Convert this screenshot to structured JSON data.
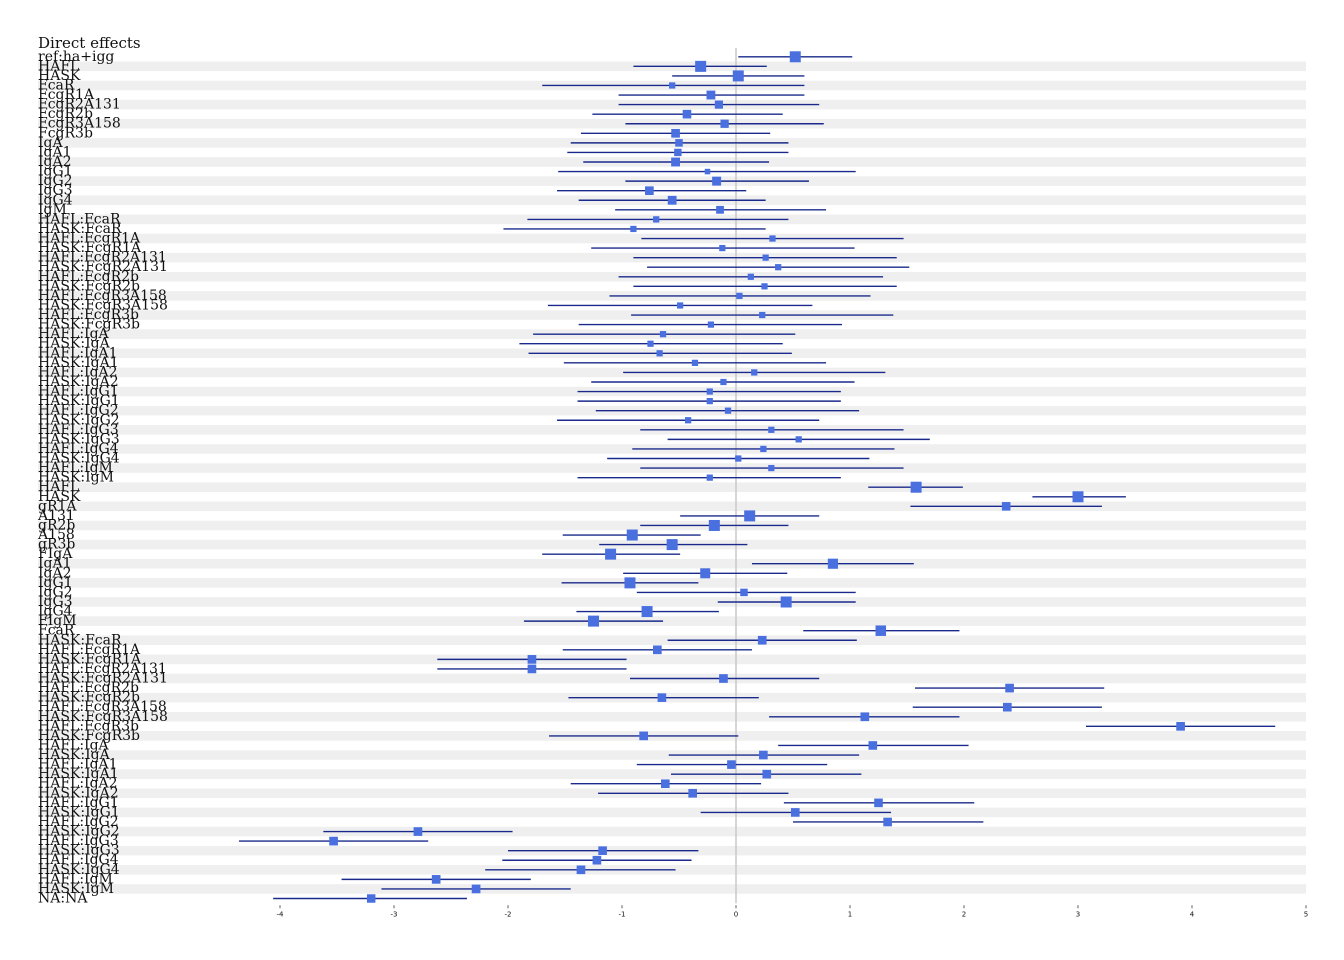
{
  "chart_data": {
    "type": "forest",
    "title": "Direct effects",
    "xlabel": "",
    "ylabel": "",
    "xlim": [
      -4,
      5
    ],
    "xticks": [
      -4,
      -3,
      -2,
      -1,
      0,
      1,
      2,
      3,
      4,
      5
    ],
    "reference_line": 0,
    "rows": [
      {
        "label": "ref:ha+igg",
        "est": 0.52,
        "lo": 0.02,
        "hi": 1.02
      },
      {
        "label": "HAFL",
        "est": -0.31,
        "lo": -0.9,
        "hi": 0.27
      },
      {
        "label": "HASK",
        "est": 0.02,
        "lo": -0.56,
        "hi": 0.6
      },
      {
        "label": "FcaR",
        "est": -0.56,
        "lo": -1.7,
        "hi": 0.6
      },
      {
        "label": "FcgR1A",
        "est": -0.22,
        "lo": -1.03,
        "hi": 0.6
      },
      {
        "label": "FcgR2A131",
        "est": -0.15,
        "lo": -1.03,
        "hi": 0.73
      },
      {
        "label": "FcgR2b",
        "est": -0.43,
        "lo": -1.26,
        "hi": 0.41
      },
      {
        "label": "FcgR3A158",
        "est": -0.1,
        "lo": -0.97,
        "hi": 0.77
      },
      {
        "label": "FcgR3b",
        "est": -0.53,
        "lo": -1.36,
        "hi": 0.3
      },
      {
        "label": "IgA",
        "est": -0.5,
        "lo": -1.45,
        "hi": 0.46
      },
      {
        "label": "IgA1",
        "est": -0.51,
        "lo": -1.48,
        "hi": 0.46
      },
      {
        "label": "IgA2",
        "est": -0.53,
        "lo": -1.34,
        "hi": 0.29
      },
      {
        "label": "IgG1",
        "est": -0.25,
        "lo": -1.56,
        "hi": 1.05
      },
      {
        "label": "IgG2",
        "est": -0.17,
        "lo": -0.97,
        "hi": 0.64
      },
      {
        "label": "IgG3",
        "est": -0.76,
        "lo": -1.57,
        "hi": 0.09
      },
      {
        "label": "IgG4",
        "est": -0.56,
        "lo": -1.38,
        "hi": 0.26
      },
      {
        "label": "IgM",
        "est": -0.14,
        "lo": -1.06,
        "hi": 0.79
      },
      {
        "label": "HAFL:FcaR",
        "est": -0.7,
        "lo": -1.83,
        "hi": 0.46
      },
      {
        "label": "HASK:FcaR",
        "est": -0.9,
        "lo": -2.04,
        "hi": 0.26
      },
      {
        "label": "HAFL:FcgR1A",
        "est": 0.32,
        "lo": -0.83,
        "hi": 1.47
      },
      {
        "label": "HASK:FcgR1A",
        "est": -0.12,
        "lo": -1.27,
        "hi": 1.04
      },
      {
        "label": "HAFL:FcgR2A131",
        "est": 0.26,
        "lo": -0.9,
        "hi": 1.41
      },
      {
        "label": "HASK:FcgR2A131",
        "est": 0.37,
        "lo": -0.78,
        "hi": 1.52
      },
      {
        "label": "HAFL:FcgR2b",
        "est": 0.13,
        "lo": -1.03,
        "hi": 1.29
      },
      {
        "label": "HASK:FcgR2b",
        "est": 0.25,
        "lo": -0.9,
        "hi": 1.41
      },
      {
        "label": "HAFL:FcgR3A158",
        "est": 0.03,
        "lo": -1.11,
        "hi": 1.18
      },
      {
        "label": "HASK:FcgR3A158",
        "est": -0.49,
        "lo": -1.65,
        "hi": 0.67
      },
      {
        "label": "HAFL:FcgR3b",
        "est": 0.23,
        "lo": -0.92,
        "hi": 1.38
      },
      {
        "label": "HASK:FcgR3b",
        "est": -0.22,
        "lo": -1.38,
        "hi": 0.93
      },
      {
        "label": "HAFL:IgA",
        "est": -0.64,
        "lo": -1.78,
        "hi": 0.52
      },
      {
        "label": "HASK:IgA",
        "est": -0.75,
        "lo": -1.9,
        "hi": 0.41
      },
      {
        "label": "HAFL:IgA1",
        "est": -0.67,
        "lo": -1.82,
        "hi": 0.49
      },
      {
        "label": "HASK:IgA1",
        "est": -0.36,
        "lo": -1.51,
        "hi": 0.79
      },
      {
        "label": "HAFL:IgA2",
        "est": 0.16,
        "lo": -0.99,
        "hi": 1.31
      },
      {
        "label": "HASK:IgA2",
        "est": -0.11,
        "lo": -1.27,
        "hi": 1.04
      },
      {
        "label": "HAFL:IgG1",
        "est": -0.23,
        "lo": -1.39,
        "hi": 0.92
      },
      {
        "label": "HASK:IgG1",
        "est": -0.23,
        "lo": -1.39,
        "hi": 0.92
      },
      {
        "label": "HAFL:IgG2",
        "est": -0.07,
        "lo": -1.23,
        "hi": 1.08
      },
      {
        "label": "HASK:IgG2",
        "est": -0.42,
        "lo": -1.57,
        "hi": 0.73
      },
      {
        "label": "HAFL:IgG3",
        "est": 0.31,
        "lo": -0.84,
        "hi": 1.47
      },
      {
        "label": "HASK:IgG3",
        "est": 0.55,
        "lo": -0.6,
        "hi": 1.7
      },
      {
        "label": "HAFL:IgG4",
        "est": 0.24,
        "lo": -0.91,
        "hi": 1.39
      },
      {
        "label": "HASK:IgG4",
        "est": 0.02,
        "lo": -1.13,
        "hi": 1.17
      },
      {
        "label": "HAFL:IgM",
        "est": 0.31,
        "lo": -0.84,
        "hi": 1.47
      },
      {
        "label": "HASK:IgM",
        "est": -0.23,
        "lo": -1.39,
        "hi": 0.92
      },
      {
        "label": "HAFL",
        "est": 1.58,
        "lo": 1.16,
        "hi": 1.99
      },
      {
        "label": "HASK",
        "est": 3.0,
        "lo": 2.6,
        "hi": 3.42
      },
      {
        "label": "gR1A",
        "est": 2.37,
        "lo": 1.53,
        "hi": 3.21
      },
      {
        "label": "A131",
        "est": 0.12,
        "lo": -0.49,
        "hi": 0.73
      },
      {
        "label": "gR2b",
        "est": -0.19,
        "lo": -0.84,
        "hi": 0.46
      },
      {
        "label": "A158",
        "est": -0.91,
        "lo": -1.52,
        "hi": -0.31
      },
      {
        "label": "gR3b",
        "est": -0.56,
        "lo": -1.2,
        "hi": 0.1
      },
      {
        "label": "FIgA",
        "est": -1.1,
        "lo": -1.7,
        "hi": -0.49
      },
      {
        "label": "IgA1",
        "est": 0.85,
        "lo": 0.14,
        "hi": 1.56
      },
      {
        "label": "IgA2",
        "est": -0.27,
        "lo": -0.99,
        "hi": 0.45
      },
      {
        "label": "IgG1",
        "est": -0.93,
        "lo": -1.53,
        "hi": -0.33
      },
      {
        "label": "IgG2",
        "est": 0.07,
        "lo": -0.87,
        "hi": 1.05
      },
      {
        "label": "IgG3",
        "est": 0.44,
        "lo": -0.16,
        "hi": 1.05
      },
      {
        "label": "IgG4",
        "est": -0.78,
        "lo": -1.4,
        "hi": -0.15
      },
      {
        "label": "FIgM",
        "est": -1.25,
        "lo": -1.86,
        "hi": -0.64
      },
      {
        "label": "FcaR",
        "est": 1.27,
        "lo": 0.59,
        "hi": 1.96
      },
      {
        "label": "HASK:FcaR",
        "est": 0.23,
        "lo": -0.6,
        "hi": 1.06
      },
      {
        "label": "HAFL:FcgR1A",
        "est": -0.69,
        "lo": -1.52,
        "hi": 0.14
      },
      {
        "label": "HASK:FcgR1A",
        "est": -1.79,
        "lo": -2.62,
        "hi": -0.96
      },
      {
        "label": "HAFL:FcgR2A131",
        "est": -1.79,
        "lo": -2.62,
        "hi": -0.96
      },
      {
        "label": "HASK:FcgR2A131",
        "est": -0.11,
        "lo": -0.93,
        "hi": 0.73
      },
      {
        "label": "HAFL:FcgR2b",
        "est": 2.4,
        "lo": 1.57,
        "hi": 3.23
      },
      {
        "label": "HASK:FcgR2b",
        "est": -0.65,
        "lo": -1.47,
        "hi": 0.2
      },
      {
        "label": "HAFL:FcgR3A158",
        "est": 2.38,
        "lo": 1.55,
        "hi": 3.21
      },
      {
        "label": "HASK:FcgR3A158",
        "est": 1.13,
        "lo": 0.29,
        "hi": 1.96
      },
      {
        "label": "HAFL:FcgR3b",
        "est": 3.9,
        "lo": 3.07,
        "hi": 4.73
      },
      {
        "label": "HASK:FcgR3b",
        "est": -0.81,
        "lo": -1.64,
        "hi": 0.02
      },
      {
        "label": "HAFL:IgA",
        "est": 1.2,
        "lo": 0.37,
        "hi": 2.04
      },
      {
        "label": "HASK:IgA",
        "est": 0.24,
        "lo": -0.59,
        "hi": 1.08
      },
      {
        "label": "HAFL:IgA1",
        "est": -0.04,
        "lo": -0.87,
        "hi": 0.8
      },
      {
        "label": "HASK:IgA1",
        "est": 0.27,
        "lo": -0.57,
        "hi": 1.1
      },
      {
        "label": "HAFL:IgA2",
        "est": -0.62,
        "lo": -1.45,
        "hi": 0.22
      },
      {
        "label": "HASK:IgA2",
        "est": -0.38,
        "lo": -1.21,
        "hi": 0.46
      },
      {
        "label": "HAFL:IgG1",
        "est": 1.25,
        "lo": 0.42,
        "hi": 2.09
      },
      {
        "label": "HASK:IgG1",
        "est": 0.52,
        "lo": -0.31,
        "hi": 1.36
      },
      {
        "label": "HAFL:IgG2",
        "est": 1.33,
        "lo": 0.5,
        "hi": 2.17
      },
      {
        "label": "HASK:IgG2",
        "est": -2.79,
        "lo": -3.62,
        "hi": -1.96
      },
      {
        "label": "HAFL:IgG3",
        "est": -3.53,
        "lo": -4.36,
        "hi": -2.7
      },
      {
        "label": "HASK:IgG3",
        "est": -1.17,
        "lo": -2.0,
        "hi": -0.33
      },
      {
        "label": "HAFL:IgG4",
        "est": -1.22,
        "lo": -2.05,
        "hi": -0.39
      },
      {
        "label": "HASK:IgG4",
        "est": -1.36,
        "lo": -2.2,
        "hi": -0.53
      },
      {
        "label": "HAFL:IgM",
        "est": -2.63,
        "lo": -3.46,
        "hi": -1.8
      },
      {
        "label": "HASK:IgM",
        "est": -2.28,
        "lo": -3.11,
        "hi": -1.45
      },
      {
        "label": "NA:NA",
        "est": -3.2,
        "lo": -4.06,
        "hi": -2.36
      }
    ],
    "colors": {
      "band": "#efefef",
      "ci_line": "#1a2a8c",
      "point": "#4a70e0",
      "reference_line": "#c8c8c8"
    }
  }
}
